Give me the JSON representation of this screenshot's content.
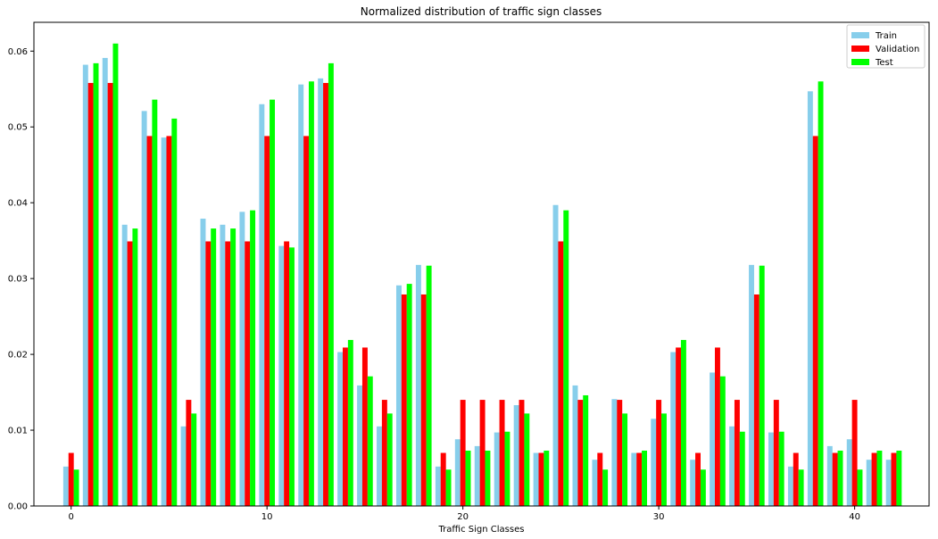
{
  "chart_data": {
    "type": "bar",
    "title": "Normalized distribution of traffic sign classes",
    "xlabel": "Traffic Sign Classes",
    "ylabel": "",
    "x": [
      0,
      1,
      2,
      3,
      4,
      5,
      6,
      7,
      8,
      9,
      10,
      11,
      12,
      13,
      14,
      15,
      16,
      17,
      18,
      19,
      20,
      21,
      22,
      23,
      24,
      25,
      26,
      27,
      28,
      29,
      30,
      31,
      32,
      33,
      34,
      35,
      36,
      37,
      38,
      39,
      40,
      41,
      42
    ],
    "xticks": [
      0,
      10,
      20,
      30,
      40
    ],
    "yticks": [
      0.0,
      0.01,
      0.02,
      0.03,
      0.04,
      0.05,
      0.06
    ],
    "xlim": [
      -1.9,
      43.8
    ],
    "ylim": [
      0,
      0.0638
    ],
    "grid": false,
    "legend_position": "top-right",
    "series": [
      {
        "name": "Train",
        "color": "#87ceeb",
        "values": [
          0.0052,
          0.0582,
          0.0591,
          0.0371,
          0.0521,
          0.0486,
          0.0105,
          0.0379,
          0.0371,
          0.0388,
          0.053,
          0.0343,
          0.0556,
          0.0564,
          0.0203,
          0.0159,
          0.0105,
          0.0291,
          0.0318,
          0.0052,
          0.0088,
          0.0079,
          0.0097,
          0.0133,
          0.007,
          0.0397,
          0.0159,
          0.0061,
          0.0141,
          0.007,
          0.0115,
          0.0203,
          0.0061,
          0.0176,
          0.0105,
          0.0318,
          0.0097,
          0.0052,
          0.0547,
          0.0079,
          0.0088,
          0.0061,
          0.0061
        ]
      },
      {
        "name": "Validation",
        "color": "#ff0000",
        "values": [
          0.007,
          0.0558,
          0.0558,
          0.0349,
          0.0488,
          0.0488,
          0.014,
          0.0349,
          0.0349,
          0.0349,
          0.0488,
          0.0349,
          0.0488,
          0.0558,
          0.0209,
          0.0209,
          0.014,
          0.0279,
          0.0279,
          0.007,
          0.014,
          0.014,
          0.014,
          0.014,
          0.007,
          0.0349,
          0.014,
          0.007,
          0.014,
          0.007,
          0.014,
          0.0209,
          0.007,
          0.0209,
          0.014,
          0.0279,
          0.014,
          0.007,
          0.0488,
          0.007,
          0.014,
          0.007,
          0.007
        ]
      },
      {
        "name": "Test",
        "color": "#00ff00",
        "values": [
          0.0048,
          0.0584,
          0.061,
          0.0366,
          0.0536,
          0.0511,
          0.0122,
          0.0366,
          0.0366,
          0.039,
          0.0536,
          0.0341,
          0.056,
          0.0584,
          0.0219,
          0.0171,
          0.0122,
          0.0293,
          0.0317,
          0.0048,
          0.0073,
          0.0073,
          0.0098,
          0.0122,
          0.0073,
          0.039,
          0.0146,
          0.0048,
          0.0122,
          0.0073,
          0.0122,
          0.0219,
          0.0048,
          0.0171,
          0.0098,
          0.0317,
          0.0098,
          0.0048,
          0.056,
          0.0073,
          0.0048,
          0.0073,
          0.0073
        ]
      }
    ]
  }
}
